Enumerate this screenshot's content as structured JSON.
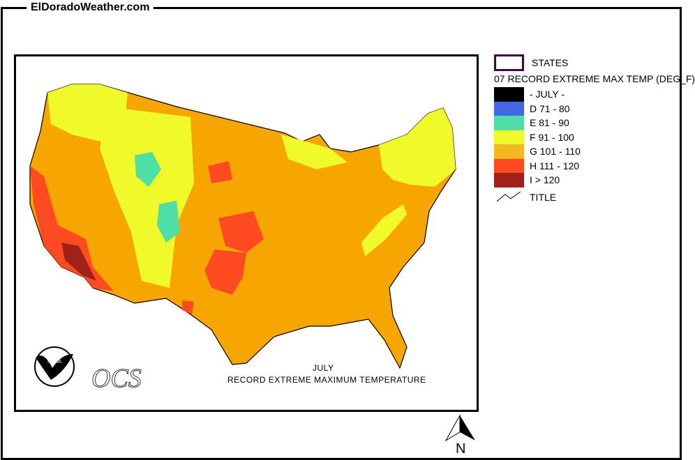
{
  "site_title": "ElDoradoWeather.com",
  "map": {
    "caption_line1": "JULY",
    "caption_line2": "RECORD EXTREME  MAXIMUM TEMPERATURE",
    "logo_noaa": "NOAA",
    "logo_ocs": "OCS",
    "north_label": "N"
  },
  "legend": {
    "states_label": "STATES",
    "layer_title": "07 RECORD EXTREME MAX TEMP (DEG_F)",
    "classes": [
      {
        "label": "- JULY -",
        "color": "#000000"
      },
      {
        "label": "D 71 - 80",
        "color": "#4169e1"
      },
      {
        "label": "E 81 - 90",
        "color": "#4ddfa6"
      },
      {
        "label": "F 91 - 100",
        "color": "#f0fa2a"
      },
      {
        "label": "G 101 - 110",
        "color": "#f5b81e"
      },
      {
        "label": "H 111 - 120",
        "color": "#ff4a22"
      },
      {
        "label": "I > 120",
        "color": "#a0201a"
      }
    ],
    "title_label": "TITLE"
  }
}
